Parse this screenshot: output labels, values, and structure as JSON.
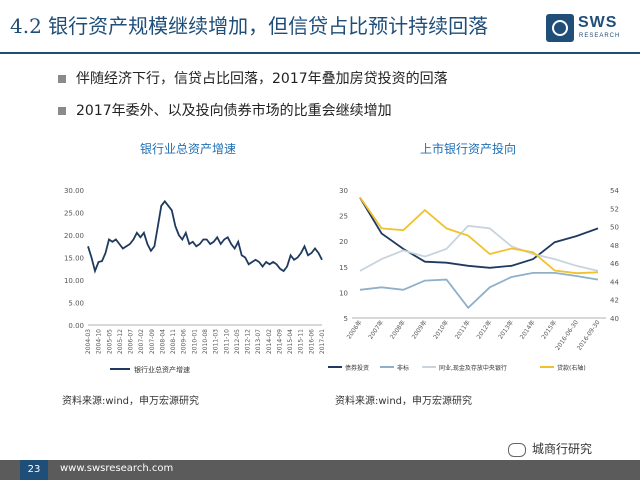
{
  "header": {
    "title": "4.2 银行资产规模继续增加，但信贷占比预计持续回落",
    "logo_name": "SWS",
    "logo_sub": "RESEARCH"
  },
  "bullets": [
    "伴随经济下行，信贷占比回落，2017年叠加房贷投资的回落",
    "2017年委外、以及投向债券市场的比重会继续增加"
  ],
  "sources": [
    "资料来源:wind，申万宏源研究",
    "资料来源:wind，申万宏源研究"
  ],
  "footer": {
    "page": "23",
    "url": "www.swsresearch.com"
  },
  "watermark": "城商行研究",
  "chart_data": [
    {
      "type": "line",
      "title": "银行业总资产增速",
      "ylim": [
        0,
        30
      ],
      "yticks": [
        "0.00",
        "5.00",
        "10.00",
        "15.00",
        "20.00",
        "25.00",
        "30.00"
      ],
      "xticks": [
        "2004-03",
        "2004-10",
        "2005-05",
        "2005-12",
        "2006-07",
        "2007-02",
        "2007-09",
        "2008-04",
        "2008-11",
        "2009-06",
        "2010-01",
        "2010-08",
        "2011-03",
        "2011-10",
        "2012-05",
        "2012-12",
        "2013-07",
        "2014-02",
        "2014-09",
        "2015-04",
        "2015-11",
        "2016-06",
        "2017-01"
      ],
      "series": [
        {
          "name": "银行业总资产增速",
          "color": "#1f3a5f",
          "values": [
            17.5,
            15.0,
            12.0,
            14.0,
            14.2,
            16.0,
            19.0,
            18.5,
            19.0,
            18.0,
            17.0,
            17.5,
            18.0,
            19.0,
            20.5,
            19.5,
            20.5,
            18.0,
            16.5,
            17.5,
            22.0,
            26.5,
            27.5,
            26.5,
            25.5,
            22.0,
            20.0,
            19.0,
            20.5,
            18.0,
            18.5,
            17.5,
            18.0,
            19.0,
            19.0,
            18.0,
            18.5,
            19.5,
            18.0,
            19.0,
            19.5,
            18.0,
            17.0,
            18.5,
            15.5,
            15.0,
            13.5,
            14.0,
            14.5,
            14.0,
            13.0,
            14.0,
            13.5,
            14.0,
            13.5,
            12.5,
            12.0,
            13.0,
            15.5,
            14.5,
            15.0,
            16.0,
            17.5,
            15.5,
            16.0,
            17.0,
            16.0,
            14.5
          ]
        }
      ]
    },
    {
      "type": "line",
      "title": "上市银行资产投向",
      "categories": [
        "2006年",
        "2007年",
        "2008年",
        "2009年",
        "2010年",
        "2011年",
        "2012年",
        "2013年",
        "2014年",
        "2015年",
        "2016-06-30",
        "2016-09-30"
      ],
      "ylim": [
        5,
        30
      ],
      "yticks": [
        "5",
        "10",
        "15",
        "20",
        "25",
        "30"
      ],
      "y2lim": [
        40,
        54
      ],
      "y2ticks": [
        "40",
        "42",
        "44",
        "46",
        "48",
        "50",
        "52",
        "54"
      ],
      "series": [
        {
          "name": "债券投资",
          "color": "#1f3a5f",
          "axis": "left",
          "values": [
            28.5,
            21.5,
            18.5,
            16.0,
            15.8,
            15.2,
            14.8,
            15.2,
            16.5,
            19.8,
            21.0,
            22.5
          ]
        },
        {
          "name": "非标",
          "color": "#8fb0c9",
          "axis": "left",
          "values": [
            10.5,
            11.0,
            10.5,
            12.3,
            12.5,
            7.0,
            11.0,
            13.0,
            13.8,
            13.8,
            13.2,
            12.5
          ]
        },
        {
          "name": "同业,现金及存放中央银行",
          "color": "#c8d3dd",
          "axis": "left",
          "values": [
            14.2,
            16.5,
            18.2,
            17.0,
            18.5,
            23.0,
            22.5,
            19.0,
            17.5,
            16.5,
            15.2,
            14.2
          ]
        },
        {
          "name": "贷款(右轴)",
          "color": "#f2c12e",
          "axis": "right",
          "values": [
            53.2,
            49.8,
            49.6,
            51.8,
            49.8,
            49.0,
            47.0,
            47.6,
            47.2,
            45.2,
            44.9,
            45.0
          ]
        }
      ]
    }
  ]
}
